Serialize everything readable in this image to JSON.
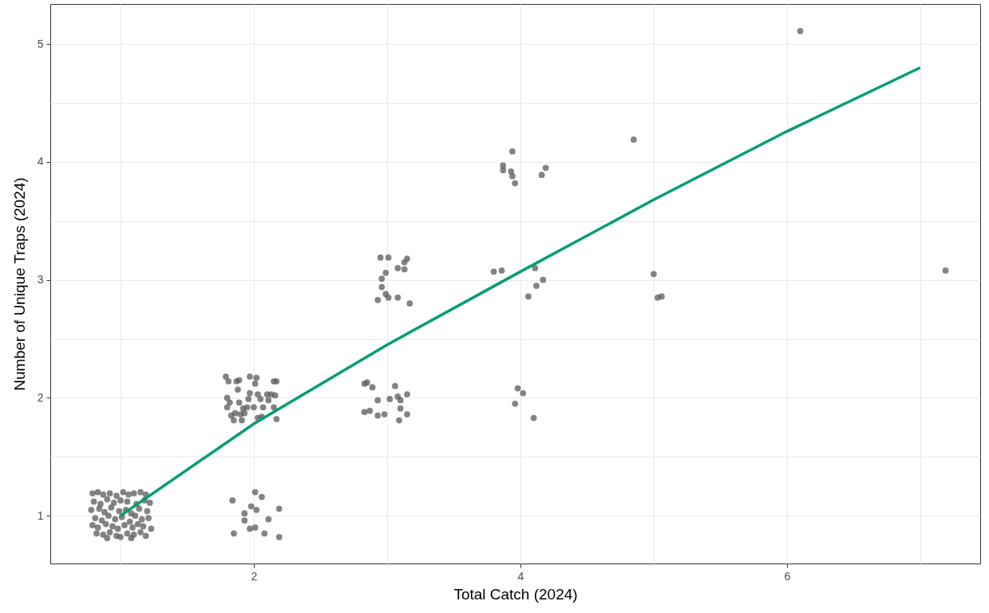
{
  "chart_data": {
    "type": "scatter",
    "xlabel": "Total Catch (2024)",
    "ylabel": "Number of Unique Traps (2024)",
    "xlim": [
      0.473,
      7.45
    ],
    "ylim": [
      0.595,
      5.34
    ],
    "xticks": [
      {
        "value": 1,
        "label": null
      },
      2,
      {
        "value": 3,
        "label": null
      },
      4,
      {
        "value": 5,
        "label": null
      },
      6,
      {
        "value": 7,
        "label": null
      }
    ],
    "yticks": [
      1,
      {
        "value": 1.5,
        "label": null
      },
      2,
      {
        "value": 2.5,
        "label": null
      },
      3,
      {
        "value": 3.5,
        "label": null
      },
      4,
      {
        "value": 4.5,
        "label": null
      },
      5
    ],
    "grid": true,
    "series": [
      {
        "marker": "circle",
        "color": "#595959",
        "x": [
          0.79,
          0.83,
          0.87,
          0.92,
          0.97,
          1.02,
          1.06,
          1.1,
          1.15,
          1.19,
          0.8,
          0.85,
          0.9,
          0.95,
          1.0,
          1.05,
          1.12,
          1.18,
          1.22,
          0.78,
          0.84,
          0.88,
          0.93,
          0.99,
          1.04,
          1.08,
          1.14,
          1.2,
          0.81,
          0.86,
          0.91,
          0.96,
          1.01,
          1.07,
          1.11,
          1.16,
          1.21,
          0.79,
          0.83,
          0.89,
          0.94,
          0.98,
          1.03,
          1.09,
          1.13,
          1.17,
          1.23,
          0.82,
          0.87,
          0.92,
          0.97,
          1.05,
          1.1,
          1.15,
          1.19,
          0.9,
          1.0,
          1.08,
          1.84,
          2.01,
          2.06,
          1.98,
          2.02,
          2.19,
          1.93,
          1.93,
          2.11,
          1.97,
          2.01,
          1.85,
          2.08,
          2.19,
          1.79,
          1.81,
          1.87,
          1.89,
          1.97,
          2.02,
          2.01,
          2.15,
          2.17,
          1.88,
          1.8,
          1.82,
          1.89,
          1.96,
          1.97,
          2.03,
          2.05,
          2.1,
          2.13,
          2.16,
          2.11,
          1.8,
          1.92,
          1.95,
          1.86,
          1.93,
          2.15,
          1.83,
          1.85,
          1.91,
          1.9,
          2.03,
          2.06,
          2.17,
          2.0,
          2.07,
          2.95,
          3.01,
          3.15,
          3.13,
          3.08,
          3.13,
          2.99,
          2.96,
          2.96,
          2.99,
          3.01,
          2.93,
          3.08,
          3.17,
          2.83,
          2.85,
          2.89,
          3.06,
          2.93,
          3.02,
          3.08,
          3.15,
          3.1,
          3.1,
          2.83,
          2.87,
          2.93,
          2.98,
          3.15,
          3.09,
          3.94,
          3.87,
          3.87,
          3.93,
          3.94,
          3.96,
          4.19,
          4.16,
          3.8,
          3.86,
          4.11,
          4.17,
          4.12,
          4.06,
          3.98,
          4.02,
          3.96,
          4.1,
          6.1,
          4.85,
          5.0,
          5.03,
          5.06,
          7.19
        ],
        "values": [
          1.19,
          1.2,
          1.18,
          1.19,
          1.17,
          1.2,
          1.18,
          1.19,
          1.2,
          1.18,
          1.12,
          1.1,
          1.14,
          1.11,
          1.13,
          1.12,
          1.1,
          1.13,
          1.11,
          1.05,
          1.06,
          1.03,
          1.07,
          1.04,
          1.05,
          1.02,
          1.06,
          1.04,
          0.98,
          0.96,
          1.0,
          0.97,
          0.99,
          0.95,
          1.0,
          0.97,
          0.98,
          0.92,
          0.9,
          0.93,
          0.91,
          0.89,
          0.92,
          0.9,
          0.93,
          0.91,
          0.89,
          0.85,
          0.84,
          0.86,
          0.83,
          0.85,
          0.84,
          0.86,
          0.83,
          0.81,
          0.82,
          0.81,
          1.13,
          1.2,
          1.16,
          1.08,
          1.05,
          1.06,
          1.02,
          0.96,
          0.97,
          0.89,
          0.9,
          0.85,
          0.85,
          0.82,
          2.18,
          2.14,
          2.14,
          2.15,
          2.18,
          2.17,
          2.12,
          2.14,
          2.14,
          2.07,
          2.0,
          1.96,
          1.96,
          1.99,
          2.04,
          2.03,
          1.99,
          2.03,
          2.03,
          2.02,
          1.98,
          1.92,
          1.91,
          1.92,
          1.87,
          1.87,
          1.92,
          1.85,
          1.81,
          1.81,
          1.86,
          1.83,
          1.84,
          1.82,
          1.92,
          1.92,
          3.19,
          3.19,
          3.18,
          3.15,
          3.1,
          3.09,
          3.06,
          3.01,
          2.94,
          2.88,
          2.85,
          2.83,
          2.85,
          2.8,
          2.12,
          2.13,
          2.09,
          2.1,
          1.98,
          1.99,
          2.01,
          2.03,
          1.98,
          1.91,
          1.88,
          1.89,
          1.85,
          1.86,
          1.86,
          1.81,
          4.09,
          3.97,
          3.93,
          3.92,
          3.88,
          3.82,
          3.95,
          3.89,
          3.07,
          3.08,
          3.1,
          3.0,
          2.95,
          2.86,
          2.08,
          2.04,
          1.95,
          1.83,
          5.11,
          4.19,
          3.05,
          2.85,
          2.86,
          3.08
        ]
      },
      {
        "type": "line",
        "color": "#009e73",
        "x": [
          1,
          2,
          3,
          4,
          5,
          6,
          7
        ],
        "values": [
          1.0,
          1.78,
          2.45,
          3.07,
          3.68,
          4.26,
          4.8
        ]
      }
    ]
  }
}
